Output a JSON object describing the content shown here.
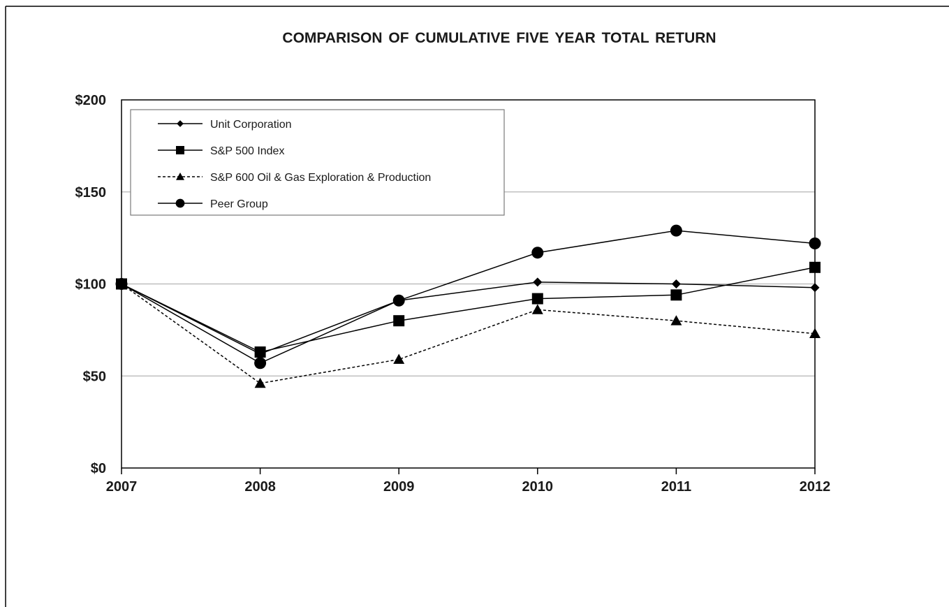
{
  "chart_data": {
    "type": "line",
    "title": "COMPARISON OF CUMULATIVE FIVE YEAR TOTAL RETURN",
    "xlabel": "",
    "ylabel": "",
    "categories": [
      "2007",
      "2008",
      "2009",
      "2010",
      "2011",
      "2012"
    ],
    "ylim": [
      0,
      200
    ],
    "yticks": [
      0,
      50,
      100,
      150,
      200
    ],
    "ytick_labels": [
      "$0",
      "$50",
      "$100",
      "$150",
      "$200"
    ],
    "grid": "horizontal",
    "legend_position": "top-left",
    "series": [
      {
        "name": "Unit Corporation",
        "marker": "diamond",
        "line_style": "solid",
        "values": [
          100,
          62,
          91,
          101,
          100,
          98
        ]
      },
      {
        "name": "S&P 500 Index",
        "marker": "square",
        "line_style": "solid",
        "values": [
          100,
          63,
          80,
          92,
          94,
          109
        ]
      },
      {
        "name": "S&P 600 Oil & Gas Exploration & Production",
        "marker": "triangle",
        "line_style": "dashed",
        "values": [
          100,
          46,
          59,
          86,
          80,
          73
        ]
      },
      {
        "name": "Peer Group",
        "marker": "circle",
        "line_style": "solid",
        "values": [
          100,
          57,
          91,
          117,
          129,
          122
        ]
      }
    ],
    "colors": {
      "line": "#000000",
      "grid": "#b4b4b4",
      "text": "#1a1a1a"
    }
  }
}
